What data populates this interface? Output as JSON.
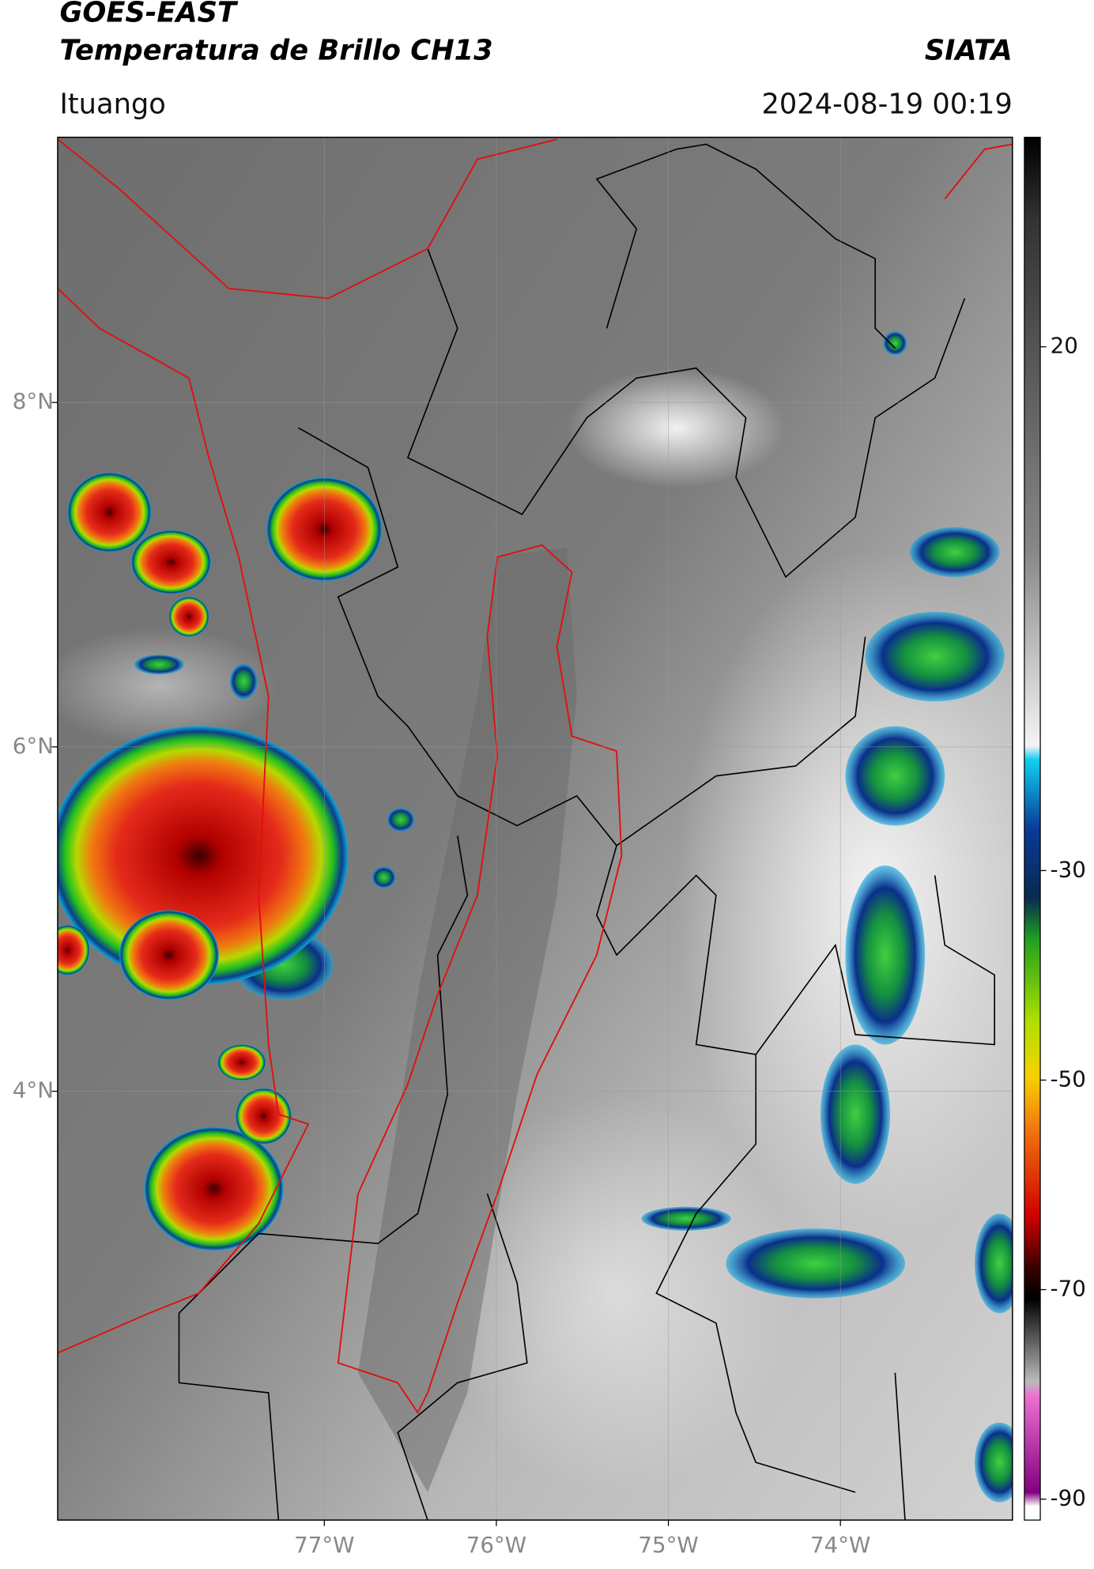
{
  "header": {
    "title_line1": "GOES-EAST",
    "title_line2": "Temperatura de Brillo CH13",
    "brand": "SIATA",
    "location": "Ituango",
    "datetime": "2024-08-19 00:19"
  },
  "map": {
    "xlim": [
      -78.55,
      -73.0
    ],
    "ylim": [
      1.51,
      9.54
    ],
    "xticks": [
      {
        "value": -77,
        "label": "77°W"
      },
      {
        "value": -76,
        "label": "76°W"
      },
      {
        "value": -75,
        "label": "75°W"
      },
      {
        "value": -74,
        "label": "74°W"
      }
    ],
    "yticks": [
      {
        "value": 8,
        "label": "8°N"
      },
      {
        "value": 6,
        "label": "6°N"
      },
      {
        "value": 4,
        "label": "4°N"
      }
    ]
  },
  "colorbar": {
    "lim": [
      -92,
      40
    ],
    "ticks": [
      20,
      -30,
      -50,
      -70,
      -90
    ]
  }
}
